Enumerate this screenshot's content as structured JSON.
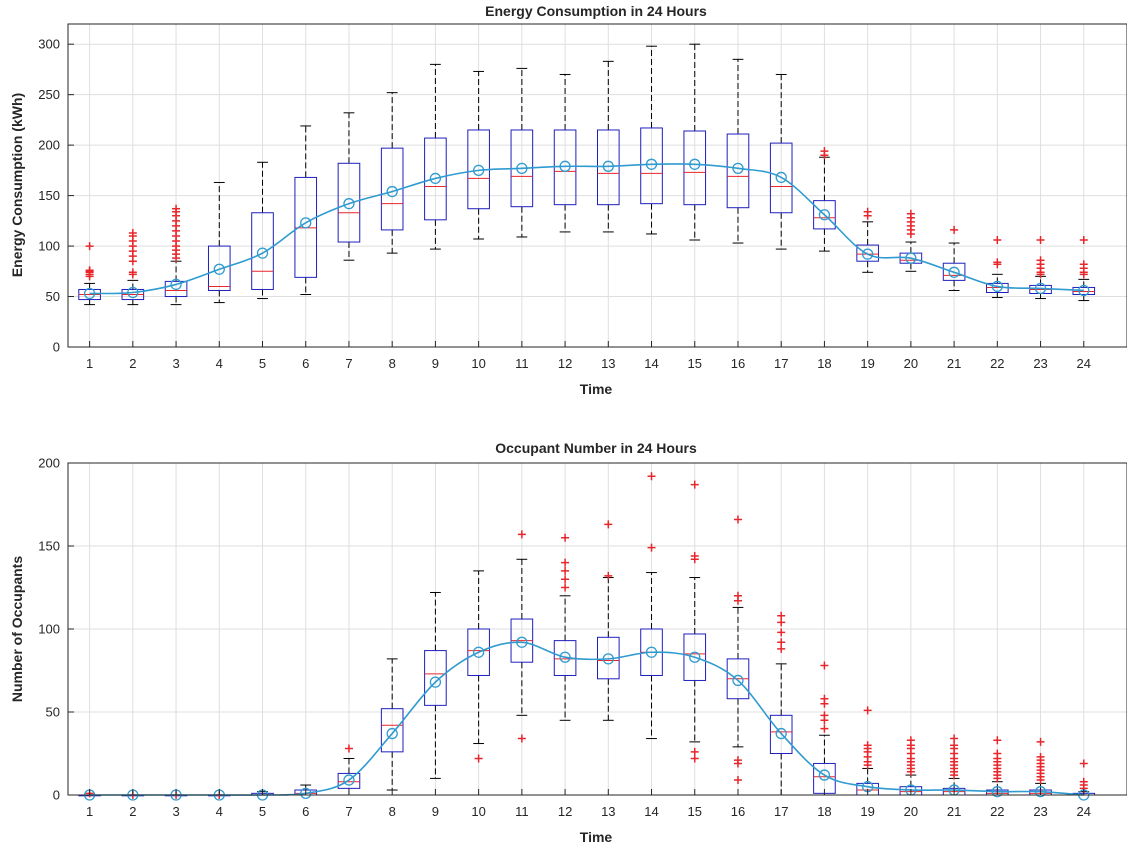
{
  "chart_data": [
    {
      "type": "box",
      "title": "Energy Consumption in 24 Hours",
      "xlabel": "Time",
      "ylabel": "Energy Consumption (kWh)",
      "ylim": [
        0,
        320
      ],
      "yticks": [
        0,
        50,
        100,
        150,
        200,
        250,
        300
      ],
      "grid": true,
      "categories": [
        "1",
        "2",
        "3",
        "4",
        "5",
        "6",
        "7",
        "8",
        "9",
        "10",
        "11",
        "12",
        "13",
        "14",
        "15",
        "16",
        "17",
        "18",
        "19",
        "20",
        "21",
        "22",
        "23",
        "24"
      ],
      "boxes": [
        {
          "wlo": 42,
          "q1": 47,
          "med": 52,
          "q3": 57,
          "whi": 63,
          "out": [
            70,
            72,
            74,
            75,
            76,
            100
          ]
        },
        {
          "wlo": 42,
          "q1": 47,
          "med": 52,
          "q3": 57,
          "whi": 66,
          "out": [
            72,
            74,
            85,
            90,
            95,
            100,
            105,
            110,
            113
          ]
        },
        {
          "wlo": 42,
          "q1": 50,
          "med": 56,
          "q3": 65,
          "whi": 85,
          "out": [
            88,
            92,
            96,
            100,
            105,
            110,
            115,
            120,
            125,
            130,
            134,
            137
          ]
        },
        {
          "wlo": 44,
          "q1": 56,
          "med": 60,
          "q3": 100,
          "whi": 163,
          "out": []
        },
        {
          "wlo": 48,
          "q1": 57,
          "med": 75,
          "q3": 133,
          "whi": 183,
          "out": []
        },
        {
          "wlo": 52,
          "q1": 69,
          "med": 118,
          "q3": 168,
          "whi": 219,
          "out": []
        },
        {
          "wlo": 86,
          "q1": 104,
          "med": 133,
          "q3": 182,
          "whi": 232,
          "out": []
        },
        {
          "wlo": 93,
          "q1": 116,
          "med": 142,
          "q3": 197,
          "whi": 252,
          "out": []
        },
        {
          "wlo": 97,
          "q1": 126,
          "med": 159,
          "q3": 207,
          "whi": 280,
          "out": []
        },
        {
          "wlo": 107,
          "q1": 137,
          "med": 167,
          "q3": 215,
          "whi": 273,
          "out": []
        },
        {
          "wlo": 109,
          "q1": 139,
          "med": 169,
          "q3": 215,
          "whi": 276,
          "out": []
        },
        {
          "wlo": 114,
          "q1": 141,
          "med": 174,
          "q3": 215,
          "whi": 270,
          "out": []
        },
        {
          "wlo": 114,
          "q1": 141,
          "med": 172,
          "q3": 215,
          "whi": 283,
          "out": []
        },
        {
          "wlo": 112,
          "q1": 142,
          "med": 172,
          "q3": 217,
          "whi": 298,
          "out": []
        },
        {
          "wlo": 106,
          "q1": 141,
          "med": 173,
          "q3": 214,
          "whi": 300,
          "out": []
        },
        {
          "wlo": 103,
          "q1": 138,
          "med": 169,
          "q3": 211,
          "whi": 285,
          "out": []
        },
        {
          "wlo": 97,
          "q1": 133,
          "med": 159,
          "q3": 202,
          "whi": 270,
          "out": []
        },
        {
          "wlo": 95,
          "q1": 117,
          "med": 128,
          "q3": 145,
          "whi": 188,
          "out": [
            190,
            194
          ]
        },
        {
          "wlo": 74,
          "q1": 85,
          "med": 92,
          "q3": 101,
          "whi": 124,
          "out": [
            130,
            134
          ]
        },
        {
          "wlo": 75,
          "q1": 83,
          "med": 86,
          "q3": 93,
          "whi": 104,
          "out": [
            112,
            116,
            120,
            124,
            128,
            132
          ]
        },
        {
          "wlo": 56,
          "q1": 66,
          "med": 71,
          "q3": 83,
          "whi": 103,
          "out": [
            116
          ]
        },
        {
          "wlo": 49,
          "q1": 54,
          "med": 59,
          "q3": 63,
          "whi": 72,
          "out": [
            82,
            84,
            106
          ]
        },
        {
          "wlo": 48,
          "q1": 53,
          "med": 57,
          "q3": 61,
          "whi": 70,
          "out": [
            72,
            74,
            78,
            82,
            86,
            106
          ]
        },
        {
          "wlo": 46,
          "q1": 52,
          "med": 55,
          "q3": 59,
          "whi": 67,
          "out": [
            72,
            74,
            78,
            82,
            106
          ]
        }
      ],
      "mean_line": [
        53,
        54,
        62,
        77,
        93,
        123,
        142,
        154,
        167,
        175,
        177,
        179,
        179,
        181,
        181,
        177,
        168,
        131,
        92,
        88,
        74,
        60,
        58,
        56
      ]
    },
    {
      "type": "box",
      "title": "Occupant Number in 24 Hours",
      "xlabel": "Time",
      "ylabel": "Number of Occupants",
      "ylim": [
        0,
        200
      ],
      "yticks": [
        0,
        50,
        100,
        150,
        200
      ],
      "grid": true,
      "categories": [
        "1",
        "2",
        "3",
        "4",
        "5",
        "6",
        "7",
        "8",
        "9",
        "10",
        "11",
        "12",
        "13",
        "14",
        "15",
        "16",
        "17",
        "18",
        "19",
        "20",
        "21",
        "22",
        "23",
        "24"
      ],
      "boxes": [
        {
          "wlo": 0,
          "q1": 0,
          "med": 0,
          "q3": 0,
          "whi": 0,
          "out": [
            1
          ]
        },
        {
          "wlo": 0,
          "q1": 0,
          "med": 0,
          "q3": 0,
          "whi": 0,
          "out": [
            0
          ]
        },
        {
          "wlo": 0,
          "q1": 0,
          "med": 0,
          "q3": 0,
          "whi": 0,
          "out": [
            0
          ]
        },
        {
          "wlo": 0,
          "q1": 0,
          "med": 0,
          "q3": 0,
          "whi": 0,
          "out": [
            0
          ]
        },
        {
          "wlo": 0,
          "q1": 0,
          "med": 0,
          "q3": 1,
          "whi": 2,
          "out": []
        },
        {
          "wlo": 0,
          "q1": 0,
          "med": 1,
          "q3": 3,
          "whi": 6,
          "out": []
        },
        {
          "wlo": 0,
          "q1": 4,
          "med": 8,
          "q3": 13,
          "whi": 22,
          "out": [
            28
          ]
        },
        {
          "wlo": 3,
          "q1": 26,
          "med": 42,
          "q3": 52,
          "whi": 82,
          "out": []
        },
        {
          "wlo": 10,
          "q1": 54,
          "med": 73,
          "q3": 87,
          "whi": 122,
          "out": []
        },
        {
          "wlo": 31,
          "q1": 72,
          "med": 87,
          "q3": 100,
          "whi": 135,
          "out": [
            22
          ]
        },
        {
          "wlo": 48,
          "q1": 80,
          "med": 93,
          "q3": 106,
          "whi": 142,
          "out": [
            34,
            157
          ]
        },
        {
          "wlo": 45,
          "q1": 72,
          "med": 82,
          "q3": 93,
          "whi": 120,
          "out": [
            125,
            130,
            135,
            140,
            155
          ]
        },
        {
          "wlo": 45,
          "q1": 70,
          "med": 81,
          "q3": 95,
          "whi": 131,
          "out": [
            132,
            163
          ]
        },
        {
          "wlo": 34,
          "q1": 72,
          "med": 86,
          "q3": 100,
          "whi": 134,
          "out": [
            149,
            192
          ]
        },
        {
          "wlo": 32,
          "q1": 69,
          "med": 85,
          "q3": 97,
          "whi": 131,
          "out": [
            22,
            26,
            142,
            144,
            187
          ]
        },
        {
          "wlo": 29,
          "q1": 58,
          "med": 70,
          "q3": 82,
          "whi": 113,
          "out": [
            9,
            19,
            21,
            117,
            120,
            166
          ]
        },
        {
          "wlo": 0,
          "q1": 25,
          "med": 38,
          "q3": 48,
          "whi": 79,
          "out": [
            88,
            92,
            98,
            104,
            108
          ]
        },
        {
          "wlo": 0,
          "q1": 1,
          "med": 11,
          "q3": 19,
          "whi": 36,
          "out": [
            40,
            45,
            48,
            55,
            58,
            78
          ]
        },
        {
          "wlo": 0,
          "q1": 0,
          "med": 3,
          "q3": 7,
          "whi": 16,
          "out": [
            18,
            20,
            23,
            26,
            28,
            30,
            51
          ]
        },
        {
          "wlo": 0,
          "q1": 0,
          "med": 2,
          "q3": 5,
          "whi": 12,
          "out": [
            14,
            16,
            18,
            20,
            22,
            25,
            28,
            30,
            33
          ]
        },
        {
          "wlo": 0,
          "q1": 0,
          "med": 2,
          "q3": 4,
          "whi": 10,
          "out": [
            12,
            14,
            16,
            18,
            20,
            22,
            25,
            28,
            30,
            34
          ]
        },
        {
          "wlo": 0,
          "q1": 0,
          "med": 1,
          "q3": 3,
          "whi": 8,
          "out": [
            10,
            12,
            14,
            16,
            18,
            20,
            22,
            25,
            33
          ]
        },
        {
          "wlo": 0,
          "q1": 0,
          "med": 1,
          "q3": 3,
          "whi": 7,
          "out": [
            9,
            11,
            13,
            15,
            17,
            19,
            21,
            23,
            32
          ]
        },
        {
          "wlo": 0,
          "q1": 0,
          "med": 0,
          "q3": 1,
          "whi": 2,
          "out": [
            4,
            6,
            8,
            19
          ]
        }
      ],
      "mean_line": [
        0,
        0,
        0,
        0,
        0,
        1,
        9,
        37,
        68,
        86,
        92,
        83,
        82,
        86,
        83,
        69,
        37,
        12,
        5,
        3,
        3,
        2,
        2,
        0
      ]
    }
  ]
}
